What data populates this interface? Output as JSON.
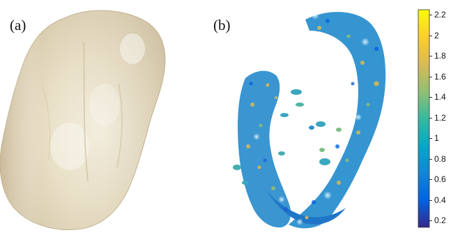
{
  "panels": {
    "a": {
      "label": "(a)"
    },
    "b": {
      "label": "(b)"
    }
  },
  "colorbar": {
    "ticks": [
      "2.2",
      "2",
      "1.8",
      "1.6",
      "1.4",
      "1.2",
      "1",
      "0.8",
      "0.6",
      "0.4",
      "0.2"
    ],
    "colormap": "parula",
    "colors": [
      "#352a87",
      "#0363e1",
      "#1485d4",
      "#06a7c6",
      "#38b99e",
      "#92bf73",
      "#d9ba56",
      "#fcce2e",
      "#f9fb0e"
    ]
  }
}
